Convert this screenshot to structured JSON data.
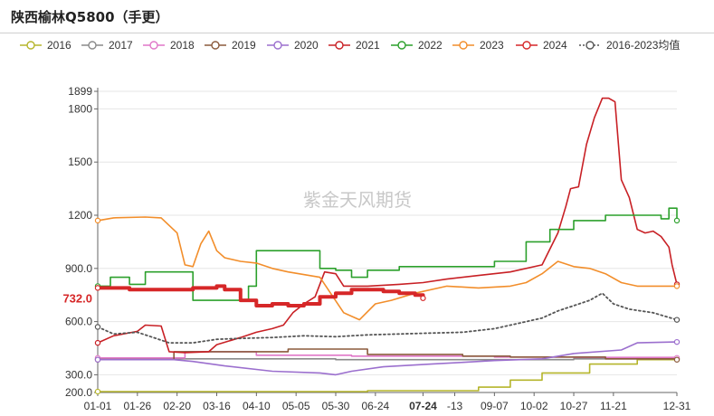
{
  "title": "陕西榆林Q5800（手更）",
  "watermark": "紫金天风期货",
  "chart_data": {
    "type": "line",
    "ylim": [
      200,
      1899
    ],
    "y_ticks": [
      "1899",
      "1800",
      "1500",
      "1200",
      "900.0",
      "600.0",
      "300.0",
      "200.0"
    ],
    "y_tick_values": [
      1899,
      1800,
      1500,
      1200,
      900,
      600,
      300,
      200
    ],
    "x_ticks": [
      "01-01",
      "01-26",
      "02-20",
      "03-16",
      "04-10",
      "05-05",
      "05-30",
      "06-24",
      "07-24",
      "-13",
      "09-07",
      "10-02",
      "10-27",
      "11-21",
      "12-31"
    ],
    "x_tick_days": [
      0,
      25,
      50,
      75,
      100,
      125,
      150,
      175,
      205,
      225,
      250,
      275,
      300,
      325,
      365
    ],
    "highlight": {
      "label": "732.0",
      "x_label": "07-24",
      "value": 732
    },
    "legend": [
      "2016",
      "2017",
      "2018",
      "2019",
      "2020",
      "2021",
      "2022",
      "2023",
      "2024",
      "2016-2023均值"
    ],
    "colors": {
      "2016": "#b5b52b",
      "2017": "#8a8a8a",
      "2018": "#e077c8",
      "2019": "#8b5a3c",
      "2020": "#9b6fce",
      "2021": "#c82025",
      "2022": "#2ca02c",
      "2023": "#f28e2b",
      "2024": "#d62728",
      "2016-2023均值": "#555555"
    },
    "series": [
      {
        "name": "2016",
        "points": [
          [
            0,
            205
          ],
          [
            80,
            205
          ],
          [
            170,
            210
          ],
          [
            240,
            230
          ],
          [
            260,
            270
          ],
          [
            280,
            310
          ],
          [
            310,
            360
          ],
          [
            340,
            385
          ],
          [
            365,
            390
          ]
        ]
      },
      {
        "name": "2017",
        "points": [
          [
            0,
            390
          ],
          [
            60,
            390
          ],
          [
            150,
            385
          ],
          [
            230,
            385
          ],
          [
            300,
            390
          ],
          [
            365,
            390
          ]
        ]
      },
      {
        "name": "2018",
        "points": [
          [
            0,
            395
          ],
          [
            45,
            395
          ],
          [
            55,
            430
          ],
          [
            100,
            410
          ],
          [
            160,
            405
          ],
          [
            250,
            400
          ],
          [
            300,
            398
          ],
          [
            365,
            395
          ]
        ]
      },
      {
        "name": "2019",
        "points": [
          [
            0,
            385
          ],
          [
            45,
            385
          ],
          [
            48,
            430
          ],
          [
            80,
            430
          ],
          [
            105,
            430
          ],
          [
            120,
            445
          ],
          [
            150,
            445
          ],
          [
            170,
            415
          ],
          [
            230,
            405
          ],
          [
            260,
            400
          ],
          [
            320,
            390
          ],
          [
            365,
            385
          ]
        ]
      },
      {
        "name": "2020",
        "points": [
          [
            0,
            385
          ],
          [
            48,
            385
          ],
          [
            60,
            375
          ],
          [
            80,
            350
          ],
          [
            110,
            320
          ],
          [
            140,
            310
          ],
          [
            150,
            300
          ],
          [
            160,
            320
          ],
          [
            180,
            345
          ],
          [
            210,
            360
          ],
          [
            230,
            370
          ],
          [
            250,
            380
          ],
          [
            280,
            390
          ],
          [
            300,
            420
          ],
          [
            330,
            440
          ],
          [
            340,
            480
          ],
          [
            365,
            485
          ]
        ]
      },
      {
        "name": "2021",
        "points": [
          [
            0,
            480
          ],
          [
            10,
            520
          ],
          [
            25,
            545
          ],
          [
            30,
            580
          ],
          [
            40,
            575
          ],
          [
            45,
            430
          ],
          [
            55,
            425
          ],
          [
            70,
            430
          ],
          [
            75,
            470
          ],
          [
            90,
            510
          ],
          [
            100,
            540
          ],
          [
            110,
            560
          ],
          [
            117,
            580
          ],
          [
            123,
            650
          ],
          [
            130,
            700
          ],
          [
            137,
            740
          ],
          [
            143,
            880
          ],
          [
            150,
            870
          ],
          [
            155,
            800
          ],
          [
            170,
            800
          ],
          [
            190,
            810
          ],
          [
            205,
            820
          ],
          [
            220,
            840
          ],
          [
            240,
            860
          ],
          [
            260,
            880
          ],
          [
            280,
            920
          ],
          [
            290,
            1100
          ],
          [
            295,
            1250
          ],
          [
            298,
            1350
          ],
          [
            303,
            1360
          ],
          [
            308,
            1600
          ],
          [
            313,
            1750
          ],
          [
            318,
            1860
          ],
          [
            322,
            1860
          ],
          [
            326,
            1840
          ],
          [
            330,
            1400
          ],
          [
            335,
            1300
          ],
          [
            340,
            1120
          ],
          [
            345,
            1100
          ],
          [
            350,
            1110
          ],
          [
            355,
            1080
          ],
          [
            360,
            1020
          ],
          [
            362,
            920
          ],
          [
            365,
            810
          ]
        ]
      },
      {
        "name": "2022",
        "points": [
          [
            0,
            800
          ],
          [
            8,
            850
          ],
          [
            15,
            850
          ],
          [
            20,
            810
          ],
          [
            30,
            810
          ],
          [
            30,
            880
          ],
          [
            50,
            880
          ],
          [
            60,
            880
          ],
          [
            60,
            720
          ],
          [
            90,
            720
          ],
          [
            95,
            800
          ],
          [
            100,
            1000
          ],
          [
            130,
            1000
          ],
          [
            140,
            900
          ],
          [
            150,
            890
          ],
          [
            160,
            850
          ],
          [
            170,
            890
          ],
          [
            190,
            910
          ],
          [
            230,
            910
          ],
          [
            250,
            940
          ],
          [
            270,
            1050
          ],
          [
            285,
            1120
          ],
          [
            300,
            1170
          ],
          [
            320,
            1200
          ],
          [
            340,
            1200
          ],
          [
            355,
            1180
          ],
          [
            360,
            1240
          ],
          [
            365,
            1170
          ]
        ]
      },
      {
        "name": "2023",
        "points": [
          [
            0,
            1170
          ],
          [
            10,
            1185
          ],
          [
            30,
            1190
          ],
          [
            40,
            1185
          ],
          [
            50,
            1100
          ],
          [
            55,
            920
          ],
          [
            60,
            910
          ],
          [
            65,
            1040
          ],
          [
            70,
            1110
          ],
          [
            75,
            1000
          ],
          [
            80,
            960
          ],
          [
            90,
            940
          ],
          [
            100,
            930
          ],
          [
            110,
            900
          ],
          [
            120,
            880
          ],
          [
            140,
            850
          ],
          [
            155,
            650
          ],
          [
            165,
            610
          ],
          [
            175,
            700
          ],
          [
            185,
            720
          ],
          [
            200,
            760
          ],
          [
            220,
            800
          ],
          [
            240,
            790
          ],
          [
            260,
            800
          ],
          [
            270,
            820
          ],
          [
            280,
            870
          ],
          [
            290,
            940
          ],
          [
            300,
            910
          ],
          [
            310,
            900
          ],
          [
            320,
            870
          ],
          [
            330,
            820
          ],
          [
            340,
            800
          ],
          [
            350,
            800
          ],
          [
            365,
            800
          ]
        ]
      },
      {
        "name": "2024",
        "points": [
          [
            0,
            790
          ],
          [
            10,
            790
          ],
          [
            20,
            780
          ],
          [
            40,
            780
          ],
          [
            50,
            780
          ],
          [
            60,
            790
          ],
          [
            75,
            800
          ],
          [
            80,
            780
          ],
          [
            90,
            720
          ],
          [
            100,
            690
          ],
          [
            110,
            700
          ],
          [
            120,
            690
          ],
          [
            130,
            700
          ],
          [
            140,
            740
          ],
          [
            150,
            760
          ],
          [
            160,
            780
          ],
          [
            170,
            780
          ],
          [
            180,
            770
          ],
          [
            190,
            760
          ],
          [
            200,
            750
          ],
          [
            205,
            732
          ]
        ]
      },
      {
        "name": "2016-2023均值",
        "points": [
          [
            0,
            570
          ],
          [
            10,
            530
          ],
          [
            25,
            540
          ],
          [
            35,
            510
          ],
          [
            45,
            480
          ],
          [
            60,
            480
          ],
          [
            75,
            500
          ],
          [
            90,
            505
          ],
          [
            110,
            510
          ],
          [
            130,
            520
          ],
          [
            150,
            515
          ],
          [
            170,
            525
          ],
          [
            190,
            530
          ],
          [
            210,
            535
          ],
          [
            230,
            540
          ],
          [
            250,
            560
          ],
          [
            265,
            590
          ],
          [
            280,
            620
          ],
          [
            290,
            660
          ],
          [
            300,
            690
          ],
          [
            310,
            720
          ],
          [
            318,
            760
          ],
          [
            325,
            700
          ],
          [
            335,
            670
          ],
          [
            350,
            650
          ],
          [
            365,
            610
          ]
        ]
      }
    ]
  }
}
